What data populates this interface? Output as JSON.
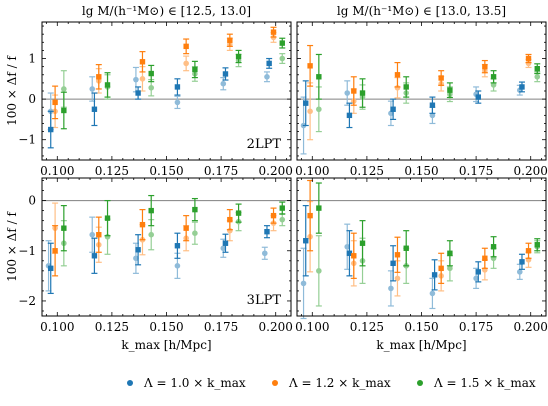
{
  "figure": {
    "legend": [
      {
        "label": "Λ = 1.0 × k_max",
        "color": "#1f77b4"
      },
      {
        "label": "Λ = 1.2 × k_max",
        "color": "#ff7f0e"
      },
      {
        "label": "Λ = 1.5 × k_max",
        "color": "#2ca02c"
      }
    ],
    "light_colors": {
      "#1f77b4": "#8fbbd9",
      "#ff7f0e": "#ffbf86",
      "#2ca02c": "#95cf95"
    }
  },
  "chart_data": [
    {
      "type": "scatter",
      "title": "lg M/(h⁻¹M⊙) ∈ [12.5, 13.0]",
      "label": "2LPT",
      "xlabel": "",
      "ylabel": "100 × Δf / f",
      "xlim": [
        0.093,
        0.207
      ],
      "ylim": [
        -1.5,
        1.9
      ],
      "xticks": [
        "0.100",
        "0.125",
        "0.150",
        "0.175",
        "0.200"
      ],
      "yticks": [
        -1,
        0,
        1
      ],
      "hline": 0,
      "series": [
        {
          "name": "Λ = 1.0 × k_max",
          "variant": "dark",
          "color": "#1f77b4",
          "x": [
            0.097,
            0.117,
            0.137,
            0.155,
            0.177,
            0.197
          ],
          "y": [
            -0.75,
            -0.25,
            0.15,
            0.3,
            0.62,
            0.88
          ],
          "err": [
            0.45,
            0.4,
            0.15,
            0.2,
            0.15,
            0.12
          ]
        },
        {
          "name": "Λ = 1.0 × k_max",
          "variant": "light",
          "color": "#1f77b4",
          "x": [
            0.097,
            0.116,
            0.136,
            0.155,
            0.176,
            0.196
          ],
          "y": [
            -0.3,
            0.25,
            0.48,
            -0.08,
            0.38,
            0.55
          ],
          "err": [
            0.45,
            0.3,
            0.3,
            0.15,
            0.15,
            0.12
          ]
        },
        {
          "name": "Λ = 1.2 × k_max",
          "variant": "dark",
          "color": "#ff7f0e",
          "x": [
            0.099,
            0.119,
            0.139,
            0.159,
            0.179,
            0.199
          ],
          "y": [
            -0.08,
            0.55,
            0.92,
            1.3,
            1.45,
            1.65
          ],
          "err": [
            0.4,
            0.3,
            0.25,
            0.18,
            0.15,
            0.12
          ]
        },
        {
          "name": "Λ = 1.2 × k_max",
          "variant": "light",
          "color": "#ff7f0e",
          "x": [
            0.099,
            0.119,
            0.139,
            0.159,
            0.179,
            0.199
          ],
          "y": [
            -0.3,
            0.45,
            0.5,
            0.88,
            1.35,
            1.52
          ],
          "err": [
            0.4,
            0.3,
            0.3,
            0.18,
            0.15,
            0.12
          ]
        },
        {
          "name": "Λ = 1.5 × k_max",
          "variant": "dark",
          "color": "#2ca02c",
          "x": [
            0.103,
            0.123,
            0.143,
            0.163,
            0.183,
            0.203
          ],
          "y": [
            -0.28,
            0.35,
            0.63,
            0.73,
            1.05,
            1.38
          ],
          "err": [
            0.45,
            0.3,
            0.2,
            0.2,
            0.15,
            0.12
          ]
        },
        {
          "name": "Λ = 1.5 × k_max",
          "variant": "light",
          "color": "#2ca02c",
          "x": [
            0.103,
            0.123,
            0.143,
            0.163,
            0.183,
            0.203
          ],
          "y": [
            0.25,
            0.3,
            0.28,
            0.62,
            0.95,
            1.0
          ],
          "err": [
            0.45,
            0.3,
            0.2,
            0.18,
            0.15,
            0.12
          ]
        }
      ]
    },
    {
      "type": "scatter",
      "title": "lg M/(h⁻¹M⊙) ∈ [13.0, 13.5]",
      "label": "",
      "xlabel": "",
      "ylabel": "",
      "xlim": [
        0.093,
        0.207
      ],
      "ylim": [
        -1.5,
        1.9
      ],
      "xticks": [
        "0.100",
        "0.125",
        "0.150",
        "0.175",
        "0.200"
      ],
      "yticks": [],
      "hline": 0,
      "series": [
        {
          "name": "Λ = 1.0 × k_max",
          "variant": "dark",
          "color": "#1f77b4",
          "x": [
            0.097,
            0.117,
            0.137,
            0.155,
            0.176,
            0.196
          ],
          "y": [
            -0.1,
            -0.4,
            -0.25,
            -0.15,
            0.05,
            0.3
          ],
          "err": [
            0.55,
            0.3,
            0.25,
            0.2,
            0.15,
            0.12
          ]
        },
        {
          "name": "Λ = 1.0 × k_max",
          "variant": "light",
          "color": "#1f77b4",
          "x": [
            0.096,
            0.116,
            0.136,
            0.155,
            0.175,
            0.195
          ],
          "y": [
            -0.65,
            0.15,
            -0.35,
            -0.4,
            0.12,
            0.22
          ],
          "err": [
            0.7,
            0.3,
            0.3,
            0.2,
            0.18,
            0.12
          ]
        },
        {
          "name": "Λ = 1.2 × k_max",
          "variant": "dark",
          "color": "#ff7f0e",
          "x": [
            0.099,
            0.119,
            0.139,
            0.159,
            0.179,
            0.199
          ],
          "y": [
            0.82,
            0.2,
            0.6,
            0.52,
            0.8,
            1.0
          ],
          "err": [
            0.5,
            0.35,
            0.3,
            0.18,
            0.15,
            0.1
          ]
        },
        {
          "name": "Λ = 1.2 × k_max",
          "variant": "light",
          "color": "#ff7f0e",
          "x": [
            0.099,
            0.119,
            0.139,
            0.159,
            0.179,
            0.199
          ],
          "y": [
            -0.3,
            -0.05,
            0.28,
            0.38,
            0.7,
            0.88
          ],
          "err": [
            0.7,
            0.3,
            0.25,
            0.18,
            0.15,
            0.1
          ]
        },
        {
          "name": "Λ = 1.5 × k_max",
          "variant": "dark",
          "color": "#2ca02c",
          "x": [
            0.103,
            0.123,
            0.143,
            0.163,
            0.183,
            0.203
          ],
          "y": [
            0.55,
            0.15,
            0.3,
            0.22,
            0.55,
            0.75
          ],
          "err": [
            0.55,
            0.35,
            0.25,
            0.18,
            0.15,
            0.12
          ]
        },
        {
          "name": "Λ = 1.5 × k_max",
          "variant": "light",
          "color": "#2ca02c",
          "x": [
            0.103,
            0.123,
            0.143,
            0.163,
            0.183,
            0.203
          ],
          "y": [
            -0.25,
            0.05,
            0.15,
            0.12,
            0.35,
            0.55
          ],
          "err": [
            0.55,
            0.3,
            0.25,
            0.18,
            0.15,
            0.12
          ]
        }
      ]
    },
    {
      "type": "scatter",
      "title": "",
      "label": "3LPT",
      "xlabel": "k_max [h/Mpc]",
      "ylabel": "100 × Δf / f",
      "xlim": [
        0.093,
        0.207
      ],
      "ylim": [
        -2.3,
        0.45
      ],
      "xticks": [
        "0.100",
        "0.125",
        "0.150",
        "0.175",
        "0.200"
      ],
      "yticks": [
        -2,
        -1,
        0
      ],
      "hline": 0,
      "series": [
        {
          "name": "Λ = 1.0 × k_max",
          "variant": "dark",
          "color": "#1f77b4",
          "x": [
            0.097,
            0.117,
            0.137,
            0.155,
            0.177,
            0.196
          ],
          "y": [
            -1.35,
            -1.1,
            -0.98,
            -0.9,
            -0.85,
            -0.62
          ],
          "err": [
            0.5,
            0.35,
            0.3,
            0.25,
            0.18,
            0.12
          ]
        },
        {
          "name": "Λ = 1.0 × k_max",
          "variant": "light",
          "color": "#1f77b4",
          "x": [
            0.096,
            0.116,
            0.136,
            0.155,
            0.176,
            0.195
          ],
          "y": [
            -1.3,
            -0.68,
            -1.15,
            -1.3,
            -0.95,
            -1.05
          ],
          "err": [
            0.5,
            0.35,
            0.3,
            0.25,
            0.18,
            0.12
          ]
        },
        {
          "name": "Λ = 1.2 × k_max",
          "variant": "dark",
          "color": "#ff7f0e",
          "x": [
            0.099,
            0.119,
            0.139,
            0.159,
            0.179,
            0.199
          ],
          "y": [
            -1.0,
            -0.68,
            -0.48,
            -0.55,
            -0.38,
            -0.3
          ],
          "err": [
            0.5,
            0.35,
            0.3,
            0.25,
            0.2,
            0.15
          ]
        },
        {
          "name": "Λ = 1.2 × k_max",
          "variant": "light",
          "color": "#ff7f0e",
          "x": [
            0.099,
            0.119,
            0.139,
            0.159,
            0.179,
            0.199
          ],
          "y": [
            -0.55,
            -0.88,
            -0.78,
            -0.75,
            -0.6,
            -0.45
          ],
          "err": [
            0.5,
            0.35,
            0.3,
            0.25,
            0.2,
            0.15
          ]
        },
        {
          "name": "Λ = 1.5 × k_max",
          "variant": "dark",
          "color": "#2ca02c",
          "x": [
            0.103,
            0.123,
            0.143,
            0.163,
            0.183,
            0.203
          ],
          "y": [
            -0.55,
            -0.35,
            -0.2,
            -0.18,
            -0.25,
            -0.15
          ],
          "err": [
            0.45,
            0.35,
            0.3,
            0.22,
            0.18,
            0.12
          ]
        },
        {
          "name": "Λ = 1.5 × k_max",
          "variant": "light",
          "color": "#2ca02c",
          "x": [
            0.103,
            0.123,
            0.143,
            0.163,
            0.183,
            0.203
          ],
          "y": [
            -0.85,
            -0.72,
            -0.68,
            -0.65,
            -0.42,
            -0.38
          ],
          "err": [
            0.45,
            0.35,
            0.3,
            0.22,
            0.18,
            0.12
          ]
        }
      ]
    },
    {
      "type": "scatter",
      "title": "",
      "label": "",
      "xlabel": "k_max [h/Mpc]",
      "ylabel": "",
      "xlim": [
        0.093,
        0.207
      ],
      "ylim": [
        -2.3,
        0.45
      ],
      "xticks": [
        "0.100",
        "0.125",
        "0.150",
        "0.175",
        "0.200"
      ],
      "yticks": [],
      "hline": 0,
      "series": [
        {
          "name": "Λ = 1.0 × k_max",
          "variant": "dark",
          "color": "#1f77b4",
          "x": [
            0.097,
            0.117,
            0.137,
            0.156,
            0.176,
            0.196
          ],
          "y": [
            -0.8,
            -1.05,
            -1.25,
            -1.48,
            -1.42,
            -1.22
          ],
          "err": [
            0.7,
            0.45,
            0.35,
            0.3,
            0.2,
            0.15
          ]
        },
        {
          "name": "Λ = 1.0 × k_max",
          "variant": "light",
          "color": "#1f77b4",
          "x": [
            0.096,
            0.116,
            0.136,
            0.155,
            0.175,
            0.195
          ],
          "y": [
            -1.65,
            -0.92,
            -1.75,
            -1.85,
            -1.55,
            -1.42
          ],
          "err": [
            0.7,
            0.45,
            0.35,
            0.3,
            0.2,
            0.15
          ]
        },
        {
          "name": "Λ = 1.2 × k_max",
          "variant": "dark",
          "color": "#ff7f0e",
          "x": [
            0.099,
            0.119,
            0.139,
            0.159,
            0.179,
            0.199
          ],
          "y": [
            -0.3,
            -1.1,
            -1.08,
            -1.35,
            -1.15,
            -1.0
          ],
          "err": [
            0.7,
            0.45,
            0.35,
            0.3,
            0.2,
            0.15
          ]
        },
        {
          "name": "Λ = 1.2 × k_max",
          "variant": "light",
          "color": "#ff7f0e",
          "x": [
            0.099,
            0.119,
            0.139,
            0.159,
            0.179,
            0.199
          ],
          "y": [
            -0.72,
            -1.25,
            -1.55,
            -1.5,
            -1.38,
            -1.18
          ],
          "err": [
            0.7,
            0.45,
            0.35,
            0.3,
            0.2,
            0.15
          ]
        },
        {
          "name": "Λ = 1.5 × k_max",
          "variant": "dark",
          "color": "#2ca02c",
          "x": [
            0.103,
            0.123,
            0.143,
            0.163,
            0.183,
            0.203
          ],
          "y": [
            -0.15,
            -0.85,
            -0.95,
            -1.05,
            -0.92,
            -0.88
          ],
          "err": [
            0.5,
            0.45,
            0.35,
            0.25,
            0.2,
            0.12
          ]
        },
        {
          "name": "Λ = 1.5 × k_max",
          "variant": "light",
          "color": "#2ca02c",
          "x": [
            0.103,
            0.123,
            0.143,
            0.163,
            0.183,
            0.203
          ],
          "y": [
            -1.4,
            -1.2,
            -1.3,
            -1.35,
            -1.15,
            -0.92
          ],
          "err": [
            0.7,
            0.45,
            0.35,
            0.25,
            0.2,
            0.12
          ]
        }
      ]
    }
  ]
}
